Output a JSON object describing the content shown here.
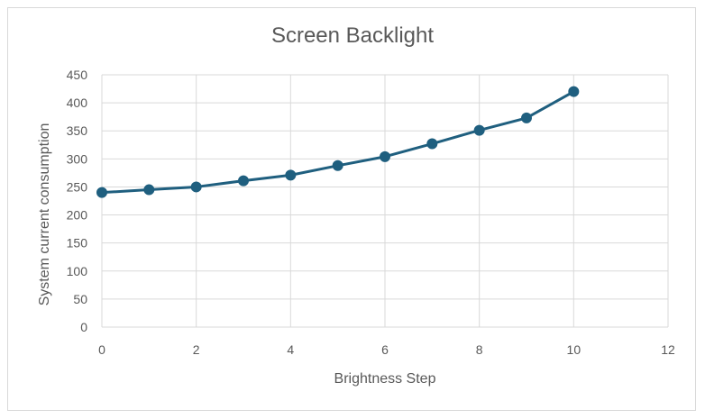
{
  "chart_data": {
    "type": "line",
    "title": "Screen Backlight",
    "xlabel": "Brightness Step",
    "ylabel": "System current consumption",
    "xlim": [
      0,
      12
    ],
    "ylim": [
      0,
      450
    ],
    "x_ticks": [
      0,
      2,
      4,
      6,
      8,
      10,
      12
    ],
    "y_ticks": [
      0,
      50,
      100,
      150,
      200,
      250,
      300,
      350,
      400,
      450
    ],
    "grid": true,
    "series": [
      {
        "x": [
          0,
          1,
          2,
          3,
          4,
          5,
          6,
          7,
          8,
          9,
          10
        ],
        "y": [
          240,
          245,
          250,
          261,
          271,
          288,
          304,
          327,
          351,
          373,
          420
        ]
      }
    ],
    "colors": {
      "line": "#1f5f7f",
      "grid": "#d9d9d9",
      "text": "#595959"
    }
  }
}
